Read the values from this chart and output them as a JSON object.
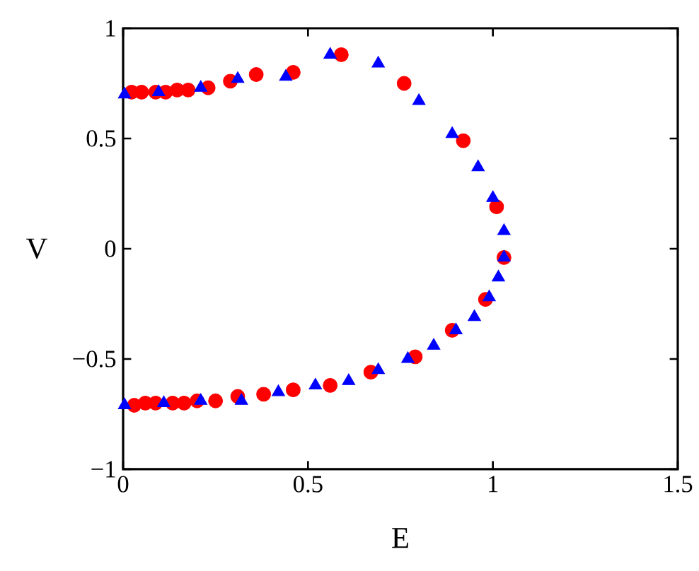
{
  "chart_data": {
    "type": "scatter",
    "xlabel": "E",
    "ylabel": "V",
    "xlim": [
      0,
      1.5
    ],
    "ylim": [
      -1,
      1
    ],
    "xticks": [
      0,
      0.5,
      1,
      1.5
    ],
    "yticks": [
      {
        "value": -1,
        "label": "−1"
      },
      {
        "value": -0.5,
        "label": "−0.5"
      },
      0,
      0.5,
      1
    ],
    "series": [
      {
        "color": "#ff0000",
        "marker": "circle",
        "x": [
          0.023,
          0.05,
          0.088,
          0.115,
          0.146,
          0.176,
          0.23,
          0.29,
          0.36,
          0.46,
          0.59,
          0.76,
          0.92,
          1.01,
          1.03,
          0.98,
          0.89,
          0.79,
          0.67,
          0.56,
          0.46,
          0.38,
          0.31,
          0.25,
          0.2,
          0.165,
          0.134,
          0.088,
          0.06,
          0.03
        ],
        "values": [
          0.71,
          0.71,
          0.71,
          0.71,
          0.72,
          0.72,
          0.73,
          0.76,
          0.79,
          0.8,
          0.88,
          0.75,
          0.49,
          0.19,
          -0.04,
          -0.23,
          -0.37,
          -0.49,
          -0.56,
          -0.62,
          -0.64,
          -0.66,
          -0.67,
          -0.69,
          -0.69,
          -0.7,
          -0.7,
          -0.7,
          -0.7,
          -0.71
        ]
      },
      {
        "color": "#0000ff",
        "marker": "triangle",
        "x": [
          0.004,
          0.096,
          0.21,
          0.31,
          0.44,
          0.56,
          0.69,
          0.8,
          0.89,
          0.96,
          1.0,
          1.03,
          1.03,
          1.015,
          0.99,
          0.95,
          0.9,
          0.84,
          0.77,
          0.69,
          0.61,
          0.52,
          0.42,
          0.32,
          0.21,
          0.11,
          0.004
        ],
        "values": [
          0.7,
          0.71,
          0.73,
          0.77,
          0.78,
          0.88,
          0.84,
          0.67,
          0.52,
          0.37,
          0.23,
          0.08,
          -0.04,
          -0.13,
          -0.22,
          -0.31,
          -0.37,
          -0.44,
          -0.5,
          -0.55,
          -0.6,
          -0.62,
          -0.65,
          -0.69,
          -0.69,
          -0.7,
          -0.71
        ]
      }
    ]
  }
}
